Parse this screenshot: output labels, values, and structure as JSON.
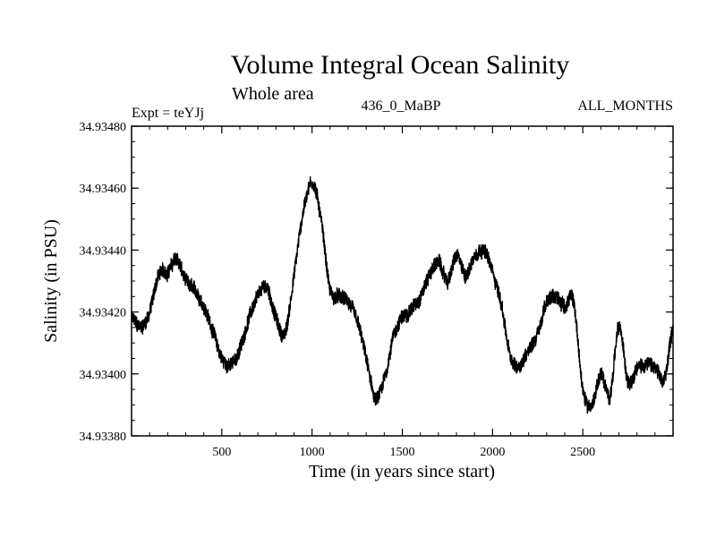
{
  "chart_data": {
    "type": "line",
    "title": "Volume Integral Ocean Salinity",
    "subtitle": "Whole area",
    "header_left": "Expt = teYJj",
    "header_center": "436_0_MaBP",
    "header_right": "ALL_MONTHS",
    "xlabel": "Time (in years since start)",
    "ylabel": "Salinity (in PSU)",
    "xlim": [
      0,
      3000
    ],
    "ylim": [
      34.9338,
      34.9348
    ],
    "x_ticks": [
      500,
      1000,
      1500,
      2000,
      2500
    ],
    "x_tick_labels": [
      "500",
      "1000",
      "1500",
      "2000",
      "2500"
    ],
    "y_ticks": [
      34.9338,
      34.934,
      34.9342,
      34.9344,
      34.9346,
      34.9348
    ],
    "y_tick_labels": [
      "34.93380",
      "34.93400",
      "34.93420",
      "34.93440",
      "34.93460",
      "34.93480"
    ],
    "grid": false,
    "series": [
      {
        "name": "Salinity",
        "x": [
          0,
          50,
          100,
          150,
          200,
          250,
          300,
          350,
          400,
          450,
          500,
          550,
          600,
          650,
          700,
          750,
          800,
          850,
          900,
          950,
          1000,
          1050,
          1100,
          1150,
          1200,
          1250,
          1300,
          1350,
          1400,
          1450,
          1500,
          1550,
          1600,
          1650,
          1700,
          1750,
          1800,
          1850,
          1900,
          1950,
          2000,
          2050,
          2100,
          2150,
          2200,
          2250,
          2300,
          2350,
          2400,
          2450,
          2500,
          2550,
          2600,
          2650,
          2700,
          2750,
          2800,
          2850,
          2900,
          2950,
          3000
        ],
        "values": [
          34.93418,
          34.93415,
          34.9342,
          34.93432,
          34.93433,
          34.93437,
          34.9343,
          34.93427,
          34.93422,
          34.93414,
          34.93405,
          34.93403,
          34.93408,
          34.93418,
          34.93425,
          34.93428,
          34.93418,
          34.93413,
          34.93432,
          34.93452,
          34.93462,
          34.9345,
          34.93427,
          34.93425,
          34.93423,
          34.93417,
          34.93405,
          34.93392,
          34.93398,
          34.93412,
          34.93418,
          34.93421,
          34.93425,
          34.93432,
          34.93436,
          34.9343,
          34.93438,
          34.93432,
          34.93438,
          34.9344,
          34.93433,
          34.93422,
          34.93405,
          34.93403,
          34.93408,
          34.93413,
          34.93423,
          34.93425,
          34.93422,
          34.93423,
          34.93395,
          34.9339,
          34.934,
          34.93393,
          34.93415,
          34.93398,
          34.93402,
          34.93403,
          34.93402,
          34.93398,
          34.93415
        ]
      }
    ]
  }
}
